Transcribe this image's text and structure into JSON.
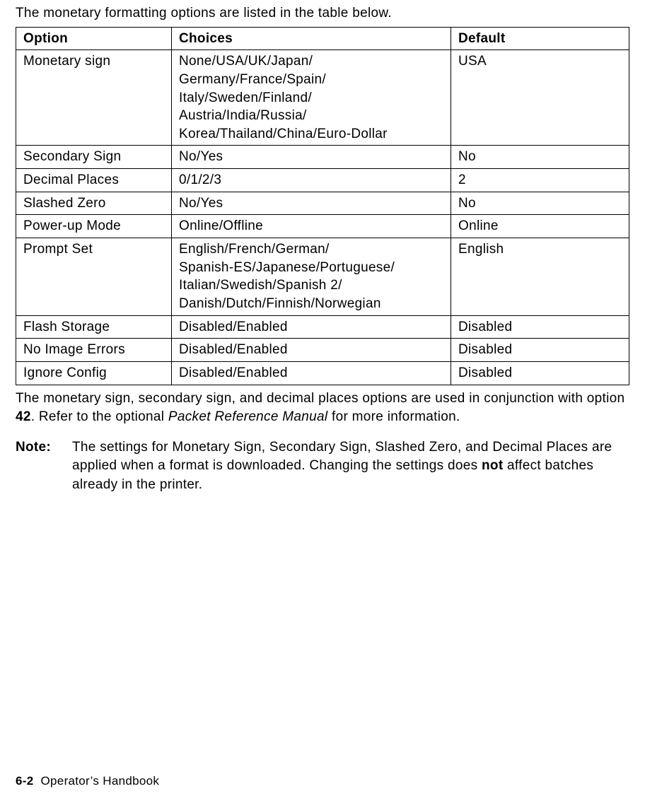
{
  "intro": "The monetary formatting options are listed in the table below.",
  "table": {
    "headers": {
      "option": "Option",
      "choices": "Choices",
      "default": "Default"
    },
    "rows": [
      {
        "option": "Monetary sign",
        "choices": "None/USA/UK/Japan/\nGermany/France/Spain/\nItaly/Sweden/Finland/\nAustria/India/Russia/\nKorea/Thailand/China/Euro-Dollar",
        "default": "USA"
      },
      {
        "option": "Secondary Sign",
        "choices": "No/Yes",
        "default": "No"
      },
      {
        "option": "Decimal Places",
        "choices": "0/1/2/3",
        "default": "2"
      },
      {
        "option": "Slashed Zero",
        "choices": "No/Yes",
        "default": "No"
      },
      {
        "option": "Power-up Mode",
        "choices": "Online/Offline",
        "default": "Online"
      },
      {
        "option": "Prompt Set",
        "choices": "English/French/German/\nSpanish-ES/Japanese/Portuguese/\nItalian/Swedish/Spanish 2/\nDanish/Dutch/Finnish/Norwegian",
        "default": "English"
      },
      {
        "option": "Flash Storage",
        "choices": "Disabled/Enabled",
        "default": "Disabled"
      },
      {
        "option": "No Image Errors",
        "choices": "Disabled/Enabled",
        "default": "Disabled"
      },
      {
        "option": "Ignore Config",
        "choices": "Disabled/Enabled",
        "default": "Disabled"
      }
    ]
  },
  "para2_pre": "The monetary sign, secondary sign, and decimal places options are used in conjunction with option ",
  "para2_bold": "42",
  "para2_mid": ".  Refer to the optional ",
  "para2_ital": "Packet Reference Manual",
  "para2_post": " for more information.",
  "note_label": "Note:",
  "note_pre": "The settings for Monetary Sign, Secondary Sign, Slashed Zero, and Decimal Places are applied when a format is downloaded.  Changing the settings does ",
  "note_bold": "not",
  "note_post": " affect batches already in the printer.",
  "footer_page": "6-2",
  "footer_text": "Operator’s Handbook"
}
